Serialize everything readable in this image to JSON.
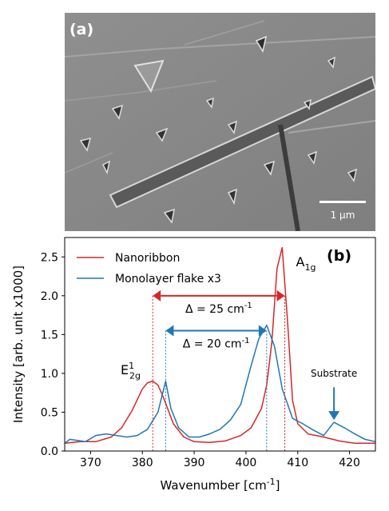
{
  "figure": {
    "panel_a_label": "(a)",
    "panel_b_label": "(b)",
    "scale_bar_label": "1 μm"
  },
  "chart_data": {
    "type": "line",
    "xlabel": "Wavenumber [cm$^{-1}$]",
    "ylabel": "Intensity [arb. unit x1000]",
    "xlim": [
      365,
      425
    ],
    "ylim": [
      0,
      2.75
    ],
    "xticks": [
      370,
      380,
      390,
      400,
      410,
      420
    ],
    "yticks": [
      0.0,
      0.5,
      1.0,
      1.5,
      2.0,
      2.5
    ],
    "legend": {
      "placement": "top-left"
    },
    "series": [
      {
        "name": "Nanoribbon",
        "color": "#d62728",
        "x": [
          365,
          368,
          371,
          374,
          376,
          378,
          380,
          381,
          382,
          383,
          384,
          386,
          388,
          390,
          393,
          396,
          399,
          401,
          403,
          404,
          405,
          406,
          407,
          408,
          409,
          410,
          412,
          415,
          418,
          421,
          425
        ],
        "y": [
          0.1,
          0.12,
          0.12,
          0.18,
          0.3,
          0.52,
          0.8,
          0.88,
          0.9,
          0.85,
          0.7,
          0.35,
          0.18,
          0.12,
          0.11,
          0.13,
          0.2,
          0.3,
          0.55,
          0.85,
          1.4,
          2.35,
          2.62,
          1.7,
          0.65,
          0.35,
          0.22,
          0.18,
          0.13,
          0.1,
          0.1
        ]
      },
      {
        "name": "Monolayer flake x3",
        "color": "#1f77b4",
        "x": [
          365,
          366,
          369,
          371,
          373,
          375,
          377,
          379,
          381,
          383,
          384.5,
          385.5,
          387,
          389,
          391,
          393,
          395,
          397,
          399,
          401,
          402.5,
          404,
          405.5,
          407,
          409,
          411,
          413,
          415,
          417,
          419,
          421,
          423,
          425
        ],
        "y": [
          0.1,
          0.15,
          0.12,
          0.2,
          0.22,
          0.2,
          0.18,
          0.2,
          0.28,
          0.5,
          0.9,
          0.55,
          0.3,
          0.18,
          0.18,
          0.22,
          0.28,
          0.4,
          0.6,
          1.1,
          1.45,
          1.62,
          1.35,
          0.8,
          0.42,
          0.35,
          0.27,
          0.2,
          0.37,
          0.3,
          0.22,
          0.15,
          0.12
        ]
      }
    ],
    "annotations": {
      "e2g_peak_x": 382,
      "a1g_peak_x": 407.5,
      "mono_e2g_peak_x": 384.5,
      "mono_a1g_peak_x": 404,
      "red_arrow_y": 2.0,
      "blue_arrow_y": 1.55,
      "delta_red": "Δ = 25 cm$^{-1}$",
      "delta_blue": "Δ = 20 cm$^{-1}$",
      "a1g_label": "A$_{1g}$",
      "e2g_label": "E$^{1}_{2g}$",
      "substrate_label": "Substrate",
      "substrate_peak_x": 417,
      "substrate_arrow_tip_y": 0.4,
      "substrate_arrow_tail_y": 0.82
    }
  }
}
